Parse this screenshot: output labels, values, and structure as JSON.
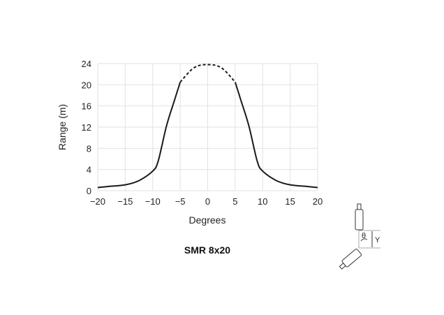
{
  "chart_data": {
    "type": "line",
    "title": "SMR 8x20",
    "xlabel": "Degrees",
    "ylabel": "Range (m)",
    "xlim": [
      -20,
      20
    ],
    "ylim": [
      0,
      24
    ],
    "xticks": [
      "−20",
      "−15",
      "−10",
      "−5",
      "0",
      "5",
      "10",
      "15",
      "20"
    ],
    "yticks": [
      "0",
      "4",
      "8",
      "12",
      "16",
      "20",
      "24"
    ],
    "grid": true,
    "line_color": "#1a1a1a",
    "series": [
      {
        "style": "solid",
        "x": [
          -20,
          -17.5,
          -15,
          -12.5,
          -10,
          -9,
          -7.5,
          -6,
          -5
        ],
        "y": [
          0.6,
          0.85,
          1.1,
          1.9,
          3.7,
          5.6,
          12.2,
          17.2,
          20.5
        ]
      },
      {
        "style": "dashed",
        "x": [
          -5,
          -2.5,
          0,
          2.5,
          5
        ],
        "y": [
          20.5,
          23.2,
          23.8,
          23.2,
          20.5
        ]
      },
      {
        "style": "solid",
        "x": [
          5,
          6,
          7.5,
          9,
          10,
          12.5,
          15,
          17.5,
          20
        ],
        "y": [
          20.5,
          17.2,
          12.2,
          5.6,
          3.7,
          1.9,
          1.1,
          0.85,
          0.6
        ]
      }
    ]
  },
  "diagram": {
    "angle_label": "θ",
    "distance_label": "Y"
  }
}
